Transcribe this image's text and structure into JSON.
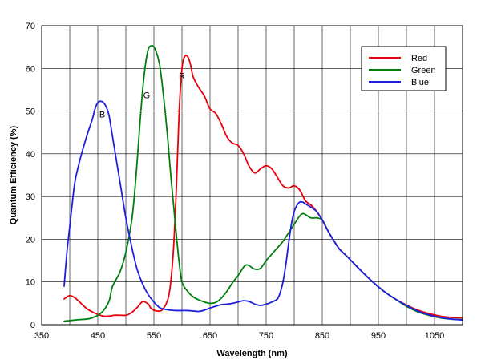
{
  "chart_data": {
    "type": "line",
    "title": "",
    "xlabel": "Wavelength (nm)",
    "ylabel": "Quantum Efficiency (%)",
    "xlim": [
      350,
      1100
    ],
    "ylim": [
      0,
      70
    ],
    "x_ticks": [
      350,
      450,
      550,
      650,
      750,
      850,
      950,
      1050
    ],
    "x_tick_labels": [
      "350",
      "450",
      "550",
      "650",
      "750",
      "850",
      "950",
      "1050"
    ],
    "y_ticks": [
      0,
      10,
      20,
      30,
      40,
      50,
      60,
      70
    ],
    "y_tick_labels": [
      "0",
      "10",
      "20",
      "30",
      "40",
      "50",
      "60",
      "70"
    ],
    "x_minor_grid_step": 50,
    "grid": true,
    "legend_position": "top-right",
    "series": [
      {
        "name": "Red",
        "color": "#e8000b",
        "points": [
          [
            390,
            6.0
          ],
          [
            400,
            6.8
          ],
          [
            410,
            6.2
          ],
          [
            420,
            5.0
          ],
          [
            430,
            3.8
          ],
          [
            440,
            3.0
          ],
          [
            450,
            2.4
          ],
          [
            460,
            2.0
          ],
          [
            470,
            2.0
          ],
          [
            480,
            2.2
          ],
          [
            490,
            2.2
          ],
          [
            500,
            2.2
          ],
          [
            510,
            2.8
          ],
          [
            520,
            4.0
          ],
          [
            530,
            5.4
          ],
          [
            540,
            4.8
          ],
          [
            545,
            3.8
          ],
          [
            555,
            3.2
          ],
          [
            565,
            3.5
          ],
          [
            575,
            6.0
          ],
          [
            580,
            10.0
          ],
          [
            585,
            18.0
          ],
          [
            590,
            32.0
          ],
          [
            595,
            50.0
          ],
          [
            600,
            60.0
          ],
          [
            605,
            62.8
          ],
          [
            610,
            62.8
          ],
          [
            615,
            61.0
          ],
          [
            620,
            58.0
          ],
          [
            630,
            55.5
          ],
          [
            640,
            53.5
          ],
          [
            650,
            50.5
          ],
          [
            660,
            49.5
          ],
          [
            670,
            47.0
          ],
          [
            680,
            44.0
          ],
          [
            690,
            42.5
          ],
          [
            700,
            42.0
          ],
          [
            710,
            40.0
          ],
          [
            720,
            37.0
          ],
          [
            730,
            35.5
          ],
          [
            740,
            36.5
          ],
          [
            750,
            37.2
          ],
          [
            760,
            36.5
          ],
          [
            770,
            34.5
          ],
          [
            780,
            32.5
          ],
          [
            790,
            32.0
          ],
          [
            800,
            32.5
          ],
          [
            810,
            31.5
          ],
          [
            820,
            29.0
          ],
          [
            830,
            28.0
          ],
          [
            840,
            26.5
          ],
          [
            850,
            24.5
          ],
          [
            860,
            22.0
          ],
          [
            870,
            19.8
          ],
          [
            880,
            17.8
          ],
          [
            890,
            16.5
          ],
          [
            900,
            15.2
          ],
          [
            920,
            12.5
          ],
          [
            940,
            10.0
          ],
          [
            960,
            7.8
          ],
          [
            980,
            6.0
          ],
          [
            1000,
            4.6
          ],
          [
            1020,
            3.4
          ],
          [
            1040,
            2.6
          ],
          [
            1060,
            2.0
          ],
          [
            1080,
            1.7
          ],
          [
            1100,
            1.6
          ]
        ]
      },
      {
        "name": "Green",
        "color": "#007f0e",
        "points": [
          [
            390,
            0.8
          ],
          [
            410,
            1.1
          ],
          [
            430,
            1.3
          ],
          [
            440,
            1.6
          ],
          [
            450,
            2.2
          ],
          [
            460,
            3.3
          ],
          [
            470,
            5.5
          ],
          [
            475,
            8.5
          ],
          [
            480,
            10.0
          ],
          [
            490,
            12.5
          ],
          [
            500,
            17.0
          ],
          [
            510,
            24.0
          ],
          [
            515,
            30.0
          ],
          [
            520,
            38.0
          ],
          [
            525,
            47.0
          ],
          [
            530,
            55.0
          ],
          [
            535,
            61.0
          ],
          [
            540,
            64.5
          ],
          [
            545,
            65.3
          ],
          [
            550,
            65.0
          ],
          [
            555,
            63.5
          ],
          [
            560,
            61.0
          ],
          [
            565,
            56.0
          ],
          [
            570,
            50.0
          ],
          [
            575,
            43.0
          ],
          [
            580,
            35.0
          ],
          [
            585,
            28.0
          ],
          [
            590,
            21.0
          ],
          [
            595,
            14.5
          ],
          [
            600,
            10.0
          ],
          [
            610,
            7.8
          ],
          [
            620,
            6.5
          ],
          [
            630,
            5.8
          ],
          [
            640,
            5.3
          ],
          [
            650,
            5.0
          ],
          [
            660,
            5.2
          ],
          [
            670,
            6.2
          ],
          [
            680,
            7.8
          ],
          [
            690,
            9.8
          ],
          [
            700,
            11.5
          ],
          [
            710,
            13.5
          ],
          [
            715,
            14.0
          ],
          [
            720,
            13.8
          ],
          [
            730,
            13.0
          ],
          [
            740,
            13.2
          ],
          [
            750,
            15.0
          ],
          [
            760,
            16.5
          ],
          [
            770,
            18.0
          ],
          [
            780,
            19.5
          ],
          [
            790,
            21.5
          ],
          [
            800,
            23.5
          ],
          [
            810,
            25.5
          ],
          [
            815,
            26.0
          ],
          [
            820,
            25.8
          ],
          [
            830,
            25.0
          ],
          [
            840,
            25.0
          ],
          [
            850,
            24.5
          ],
          [
            860,
            22.0
          ],
          [
            870,
            19.8
          ],
          [
            880,
            17.8
          ],
          [
            890,
            16.5
          ],
          [
            900,
            15.2
          ],
          [
            920,
            12.5
          ],
          [
            940,
            10.0
          ],
          [
            960,
            7.8
          ],
          [
            980,
            6.0
          ],
          [
            1000,
            4.3
          ],
          [
            1020,
            3.0
          ],
          [
            1040,
            2.2
          ],
          [
            1060,
            1.6
          ],
          [
            1080,
            1.3
          ],
          [
            1100,
            1.2
          ]
        ]
      },
      {
        "name": "Blue",
        "color": "#1f1fe0",
        "points": [
          [
            390,
            9.0
          ],
          [
            395,
            17.0
          ],
          [
            400,
            23.0
          ],
          [
            405,
            29.0
          ],
          [
            410,
            34.0
          ],
          [
            420,
            39.5
          ],
          [
            430,
            44.0
          ],
          [
            440,
            48.0
          ],
          [
            445,
            50.5
          ],
          [
            450,
            52.0
          ],
          [
            455,
            52.3
          ],
          [
            460,
            52.0
          ],
          [
            465,
            51.0
          ],
          [
            470,
            49.0
          ],
          [
            475,
            45.0
          ],
          [
            480,
            41.0
          ],
          [
            490,
            33.0
          ],
          [
            500,
            25.0
          ],
          [
            510,
            18.5
          ],
          [
            520,
            13.0
          ],
          [
            530,
            9.5
          ],
          [
            540,
            7.0
          ],
          [
            550,
            5.3
          ],
          [
            560,
            4.0
          ],
          [
            570,
            3.6
          ],
          [
            580,
            3.4
          ],
          [
            590,
            3.3
          ],
          [
            600,
            3.3
          ],
          [
            610,
            3.3
          ],
          [
            620,
            3.2
          ],
          [
            630,
            3.1
          ],
          [
            640,
            3.4
          ],
          [
            650,
            3.9
          ],
          [
            660,
            4.3
          ],
          [
            670,
            4.7
          ],
          [
            680,
            4.8
          ],
          [
            690,
            5.0
          ],
          [
            700,
            5.3
          ],
          [
            710,
            5.6
          ],
          [
            720,
            5.4
          ],
          [
            730,
            4.8
          ],
          [
            740,
            4.5
          ],
          [
            750,
            4.8
          ],
          [
            760,
            5.3
          ],
          [
            770,
            6.0
          ],
          [
            775,
            7.5
          ],
          [
            780,
            10.0
          ],
          [
            785,
            14.0
          ],
          [
            790,
            19.0
          ],
          [
            795,
            23.5
          ],
          [
            800,
            26.5
          ],
          [
            805,
            28.0
          ],
          [
            810,
            28.7
          ],
          [
            815,
            28.7
          ],
          [
            820,
            28.3
          ],
          [
            830,
            27.5
          ],
          [
            840,
            26.5
          ],
          [
            850,
            24.5
          ],
          [
            860,
            22.0
          ],
          [
            870,
            19.8
          ],
          [
            880,
            17.8
          ],
          [
            890,
            16.5
          ],
          [
            900,
            15.2
          ],
          [
            920,
            12.5
          ],
          [
            940,
            10.0
          ],
          [
            960,
            7.8
          ],
          [
            980,
            6.0
          ],
          [
            1000,
            4.5
          ],
          [
            1020,
            3.2
          ],
          [
            1040,
            2.3
          ],
          [
            1060,
            1.7
          ],
          [
            1080,
            1.3
          ],
          [
            1100,
            1.1
          ]
        ]
      }
    ],
    "annotations": [
      {
        "text": "B",
        "x": 458,
        "y": 48.5
      },
      {
        "text": "G",
        "x": 537,
        "y": 53.0
      },
      {
        "text": "R",
        "x": 600,
        "y": 57.5
      }
    ]
  }
}
